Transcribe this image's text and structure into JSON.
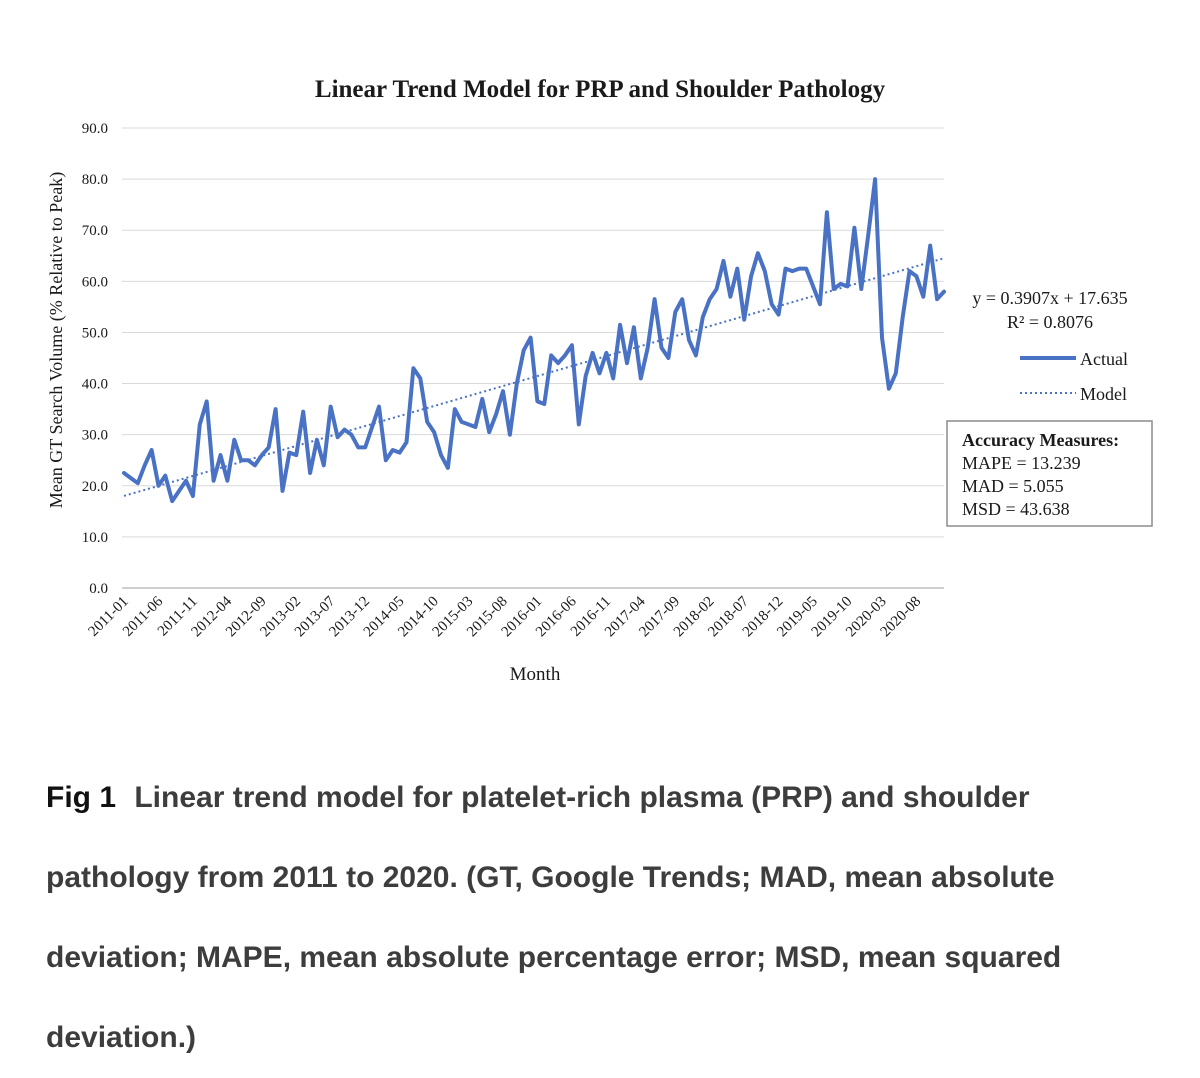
{
  "chart_data": {
    "type": "line",
    "title": "Linear Trend Model for PRP and Shoulder Pathology",
    "xlabel": "Month",
    "ylabel": "Mean GT Search Volume (% Relative to Peak)",
    "ylim": [
      0,
      90
    ],
    "yticks": [
      "0.0",
      "10.0",
      "20.0",
      "30.0",
      "40.0",
      "50.0",
      "60.0",
      "70.0",
      "80.0",
      "90.0"
    ],
    "grid": true,
    "x_tick_labels": [
      "2011-01",
      "2011-06",
      "2011-11",
      "2012-04",
      "2012-09",
      "2013-02",
      "2013-07",
      "2013-12",
      "2014-05",
      "2014-10",
      "2015-03",
      "2015-08",
      "2016-01",
      "2016-06",
      "2016-11",
      "2017-04",
      "2017-09",
      "2018-02",
      "2018-07",
      "2018-12",
      "2019-05",
      "2019-10",
      "2020-03",
      "2020-08"
    ],
    "x_tick_step": 5,
    "series": [
      {
        "name": "Actual",
        "style": "solid",
        "color": "#4a72c4",
        "values": [
          22.5,
          21.5,
          20.5,
          24,
          27,
          20,
          22,
          17,
          19,
          21,
          18,
          32,
          36.5,
          21,
          26,
          21,
          29,
          25,
          25,
          24,
          26,
          27.5,
          35,
          19,
          26.5,
          26,
          34.5,
          22.5,
          29,
          24,
          35.5,
          29.5,
          31,
          30,
          27.5,
          27.5,
          31.5,
          35.5,
          25,
          27,
          26.5,
          28.5,
          43,
          41,
          32.5,
          30.5,
          26,
          23.5,
          35,
          32.5,
          32,
          31.5,
          37,
          30.5,
          34,
          38.5,
          30,
          40,
          46.5,
          49,
          36.5,
          36,
          45.5,
          44,
          45.5,
          47.5,
          32,
          41.5,
          46,
          42,
          46,
          41,
          51.5,
          44,
          51,
          41,
          47,
          56.5,
          47,
          45,
          54,
          56.5,
          48.5,
          45.5,
          53,
          56.5,
          58.5,
          64,
          57,
          62.5,
          52.5,
          61,
          65.5,
          62,
          55.5,
          53.5,
          62.5,
          62,
          62.5,
          62.5,
          59,
          55.5,
          73.5,
          58.5,
          59.5,
          59,
          70.5,
          58.5,
          69,
          80,
          49,
          39,
          42,
          53,
          62,
          61,
          57,
          67,
          56.5,
          58
        ]
      },
      {
        "name": "Model",
        "style": "dotted",
        "color": "#4a72c4",
        "slope": 0.3907,
        "intercept": 17.635
      }
    ],
    "annotations": {
      "equation": "y = 0.3907x + 17.635",
      "r_squared": "R² = 0.8076"
    },
    "accuracy_box": {
      "title": "Accuracy Measures:",
      "lines": [
        "MAPE = 13.239",
        "MAD = 5.055",
        "MSD = 43.638"
      ]
    }
  },
  "caption": {
    "label": "Fig 1",
    "text": "Linear trend model for platelet-rich plasma (PRP) and shoulder pathology from 2011 to 2020. (GT, Google Trends; MAD, mean absolute deviation; MAPE, mean absolute percentage error; MSD, mean squared deviation.)"
  }
}
